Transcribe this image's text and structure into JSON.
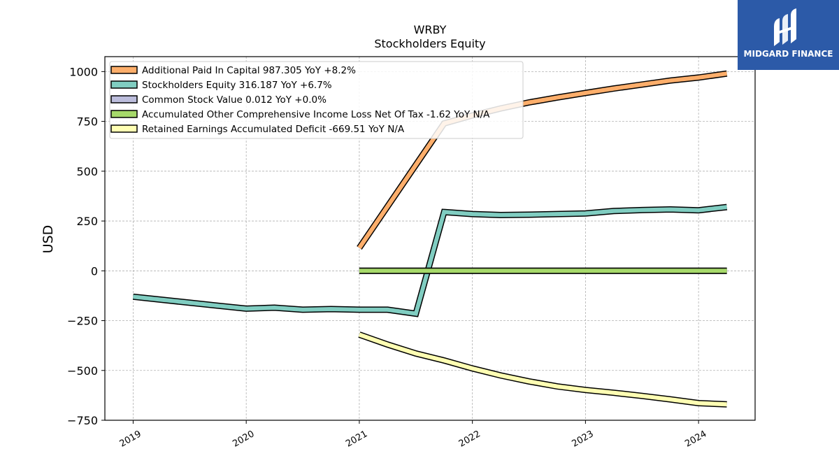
{
  "brand": {
    "name": "MIDGARD FINANCE",
    "color": "#2c5aa8"
  },
  "chart_data": {
    "type": "line",
    "title": "WRBY",
    "subtitle": "Stockholders  Equity",
    "ylabel": "USD",
    "xlabel": "",
    "ylim": [
      -750,
      1075
    ],
    "xlim": [
      2018.75,
      2024.5
    ],
    "yticks": [
      1000,
      750,
      500,
      250,
      0,
      -250,
      -500,
      -750
    ],
    "ytick_labels": [
      "1000",
      "750",
      "500",
      "250",
      "0",
      "−250",
      "−500",
      "−750"
    ],
    "xticks": [
      2019,
      2020,
      2021,
      2022,
      2023,
      2024
    ],
    "xtick_labels": [
      "2019",
      "2020",
      "2021",
      "2022",
      "2023",
      "2024"
    ],
    "grid": true,
    "legend_position": "upper-left",
    "series": [
      {
        "name": "Additional Paid In Capital  987.305 YoY +8.2%",
        "color": "#fdae6b",
        "x": [
          2021.0,
          2021.75,
          2022.0,
          2022.25,
          2022.5,
          2022.75,
          2023.0,
          2023.25,
          2023.5,
          2023.75,
          2024.0,
          2024.25
        ],
        "y": [
          115,
          740,
          780,
          815,
          845,
          870,
          893,
          915,
          935,
          955,
          970,
          990
        ]
      },
      {
        "name": "Stockholders Equity  316.187 YoY +6.7%",
        "color": "#80cdc1",
        "x": [
          2019.0,
          2019.25,
          2019.5,
          2019.75,
          2020.0,
          2020.25,
          2020.5,
          2020.75,
          2021.0,
          2021.25,
          2021.5,
          2021.75,
          2022.0,
          2022.25,
          2022.5,
          2022.75,
          2023.0,
          2023.25,
          2023.5,
          2023.75,
          2024.0,
          2024.25
        ],
        "y": [
          -130,
          -145,
          -160,
          -175,
          -190,
          -185,
          -195,
          -192,
          -195,
          -195,
          -215,
          295,
          285,
          280,
          282,
          285,
          288,
          300,
          305,
          308,
          304,
          320
        ]
      },
      {
        "name": "Common Stock Value  0.012 YoY +0.0%",
        "color": "#bcbddc",
        "x": [
          2021.0,
          2024.25
        ],
        "y": [
          0.012,
          0.012
        ]
      },
      {
        "name": "Accumulated Other Comprehensive Income Loss Net Of Tax  -1.62 YoY N/A",
        "color": "#a6d96a",
        "x": [
          2021.0,
          2024.25
        ],
        "y": [
          0,
          0
        ]
      },
      {
        "name": "Retained Earnings Accumulated Deficit  -669.51 YoY N/A",
        "color": "#ffffb3",
        "x": [
          2021.0,
          2021.25,
          2021.5,
          2021.75,
          2022.0,
          2022.25,
          2022.5,
          2022.75,
          2023.0,
          2023.25,
          2023.5,
          2023.75,
          2024.0,
          2024.25
        ],
        "y": [
          -320,
          -370,
          -415,
          -450,
          -490,
          -525,
          -555,
          -580,
          -598,
          -612,
          -628,
          -645,
          -664,
          -670
        ]
      }
    ]
  }
}
